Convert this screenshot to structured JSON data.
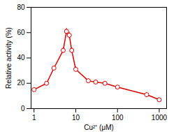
{
  "chart_data": {
    "type": "line",
    "x": [
      1,
      2,
      3,
      5,
      6,
      7,
      8,
      10,
      20,
      30,
      50,
      100,
      500,
      1000
    ],
    "values": [
      15,
      20,
      32,
      46,
      61,
      58,
      46,
      31,
      22,
      21,
      20,
      17,
      11,
      7
    ],
    "yerr": [
      1.2,
      1.2,
      1.8,
      2.2,
      2.5,
      2.5,
      2.2,
      2.0,
      1.5,
      1.5,
      1.2,
      1.2,
      1.0,
      0.8
    ],
    "color": "#dd0000",
    "marker": "circle",
    "xlabel": "Cu²⁺ (μM)",
    "ylabel": "Relative activity (%)",
    "log": "x",
    "xlim": [
      0.85,
      1500
    ],
    "ylim": [
      0,
      80
    ],
    "xticks": [
      1,
      10,
      100,
      1000
    ],
    "yticks": [
      0,
      20,
      40,
      60,
      80
    ],
    "grid": false
  }
}
